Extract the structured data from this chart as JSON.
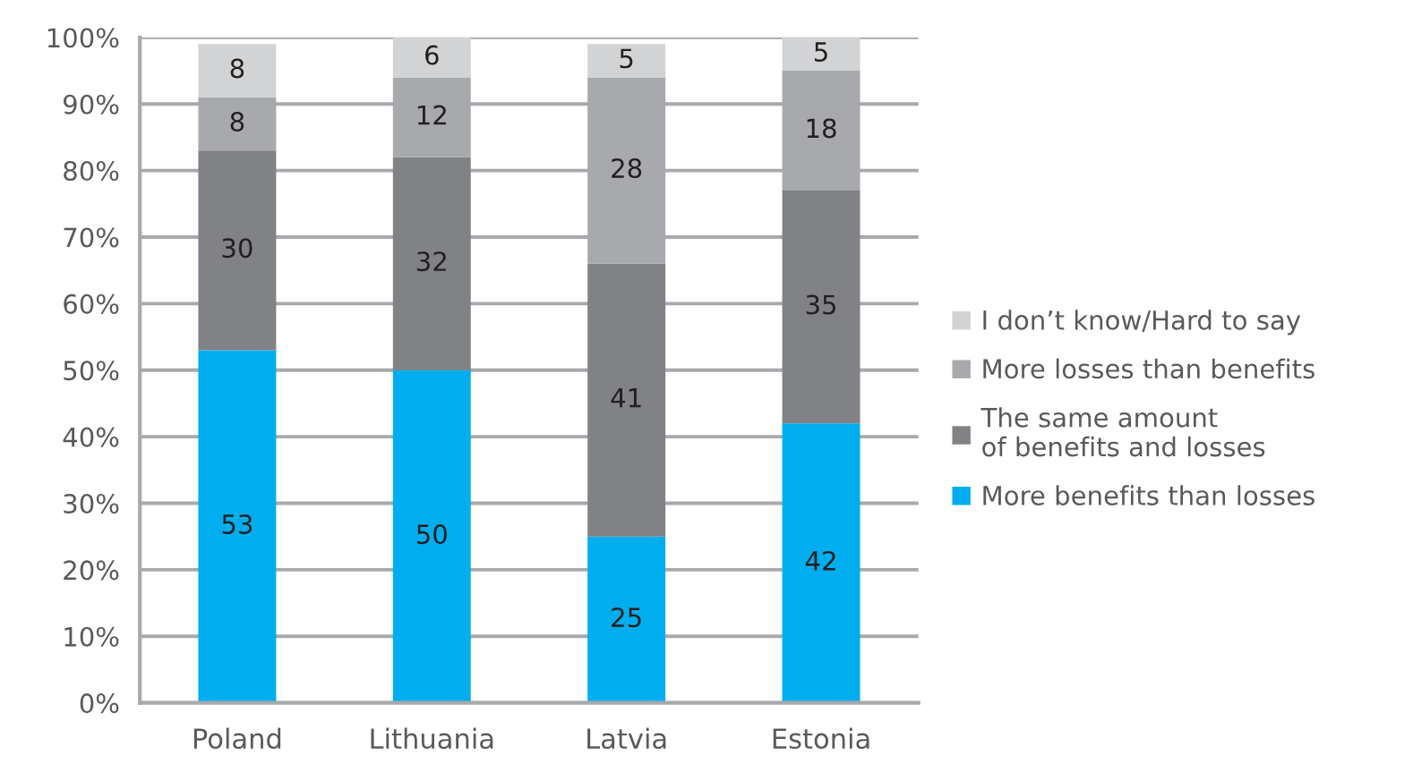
{
  "chart_data": {
    "type": "bar",
    "stacked": true,
    "categories": [
      "Poland",
      "Lithuania",
      "Latvia",
      "Estonia"
    ],
    "series": [
      {
        "name": "More benefits than losses",
        "color": "#00aeef",
        "values": [
          53,
          50,
          25,
          42
        ]
      },
      {
        "name": "The same amount\nof benefits and losses",
        "color": "#808285",
        "values": [
          30,
          32,
          41,
          35
        ]
      },
      {
        "name": "More losses than benefits",
        "color": "#a7a9ac",
        "values": [
          8,
          12,
          28,
          18
        ]
      },
      {
        "name": "I don’t know/Hard to say",
        "color": "#d1d3d4",
        "values": [
          8,
          6,
          5,
          5
        ]
      }
    ],
    "ylim": [
      0,
      100
    ],
    "yticks": [
      {
        "value": 0,
        "label": "0%"
      },
      {
        "value": 10,
        "label": "10%"
      },
      {
        "value": 20,
        "label": "20%"
      },
      {
        "value": 30,
        "label": "30%"
      },
      {
        "value": 40,
        "label": "40%"
      },
      {
        "value": 50,
        "label": "50%"
      },
      {
        "value": 60,
        "label": "60%"
      },
      {
        "value": 70,
        "label": "70%"
      },
      {
        "value": 80,
        "label": "80%"
      },
      {
        "value": 90,
        "label": "90%"
      },
      {
        "value": 100,
        "label": "100%"
      }
    ],
    "grid": "y",
    "legend": "right",
    "data_labels": true
  }
}
